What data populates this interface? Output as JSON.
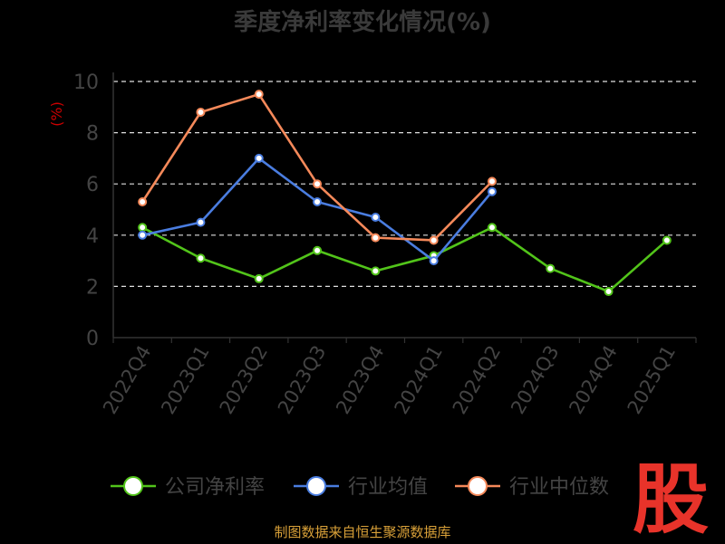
{
  "chart_data": {
    "type": "line",
    "title": "季度净利率变化情况(%)",
    "ylabel": "(%)",
    "ylim": [
      0,
      10
    ],
    "yticks": [
      0,
      2,
      4,
      6,
      8,
      10
    ],
    "grid": true,
    "legend": "bottom",
    "categories": [
      "2022Q4",
      "2023Q1",
      "2023Q2",
      "2023Q3",
      "2023Q4",
      "2024Q1",
      "2024Q2",
      "2024Q3",
      "2024Q4",
      "2025Q1"
    ],
    "series": [
      {
        "name": "公司净利率",
        "color": "#52c41a",
        "values": [
          4.3,
          3.1,
          2.3,
          3.4,
          2.6,
          3.2,
          4.3,
          2.7,
          1.8,
          3.8
        ]
      },
      {
        "name": "行业均值",
        "color": "#4a7de0",
        "values": [
          4.0,
          4.5,
          7.0,
          5.3,
          4.7,
          3.0,
          5.7,
          null,
          null,
          null
        ]
      },
      {
        "name": "行业中位数",
        "color": "#f5895a",
        "values": [
          5.3,
          8.8,
          9.5,
          6.0,
          3.9,
          3.8,
          6.1,
          null,
          null,
          null
        ]
      }
    ]
  },
  "footer": {
    "source": "制图数据来自恒生聚源数据库",
    "brand": "股"
  }
}
